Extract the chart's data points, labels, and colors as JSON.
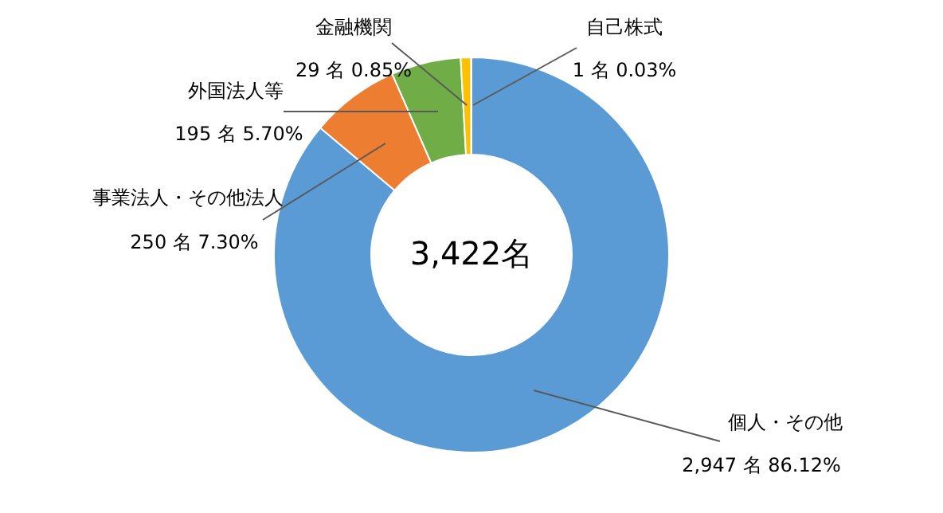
{
  "chart_data": {
    "type": "donut",
    "categories": [
      "個人・その他",
      "事業法人・その他法人",
      "外国法人等",
      "金融機関",
      "自己株式"
    ],
    "values": [
      2947,
      250,
      195,
      29,
      1
    ],
    "colors": [
      "#5b9bd5",
      "#ed7d31",
      "#70ad47",
      "#ffc000",
      "#a5a5a5"
    ],
    "value_labels": [
      "2,947 名 86.12%",
      "250 名  7.30%",
      "195 名 5.70%",
      "29 名 0.85%",
      "1 名 0.03%"
    ],
    "annotations": [
      "3,422名"
    ]
  }
}
